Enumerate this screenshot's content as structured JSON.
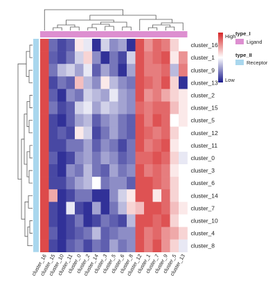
{
  "chart_data": {
    "type": "heatmap",
    "title": "",
    "xlabel": "",
    "ylabel": "",
    "rows": [
      "cluster_16",
      "cluster_1",
      "cluster_9",
      "cluster_13",
      "cluster_2",
      "cluster_15",
      "cluster_5",
      "cluster_12",
      "cluster_11",
      "cluster_0",
      "cluster_3",
      "cluster_6",
      "cluster_14",
      "cluster_7",
      "cluster_10",
      "cluster_4",
      "cluster_8"
    ],
    "columns": [
      "cluster_16",
      "cluster_15",
      "cluster_10",
      "cluster_11",
      "cluster_0",
      "cluster_2",
      "cluster_14",
      "cluster_3",
      "cluster_5",
      "cluster_6",
      "cluster_8",
      "cluster_12",
      "cluster_1",
      "cluster_7",
      "cluster_9",
      "cluster_5",
      "cluster_13"
    ],
    "scale": {
      "high_label": "High",
      "low_label": "Low",
      "colors": [
        "#1a1a8c",
        "#ffffff",
        "#d62728"
      ]
    },
    "values": [
      [
        0.92,
        0.18,
        0.1,
        0.15,
        0.55,
        0.45,
        0.05,
        0.4,
        0.25,
        0.3,
        0.05,
        0.9,
        0.75,
        0.85,
        0.8,
        0.6,
        0.5
      ],
      [
        0.92,
        0.15,
        0.1,
        0.2,
        0.4,
        0.6,
        0.25,
        0.05,
        0.2,
        0.1,
        0.4,
        0.9,
        0.8,
        0.85,
        0.9,
        0.55,
        0.75
      ],
      [
        0.92,
        0.2,
        0.35,
        0.4,
        0.3,
        0.45,
        0.15,
        0.3,
        0.2,
        0.05,
        0.3,
        0.9,
        0.8,
        0.8,
        0.85,
        0.35,
        0.8
      ],
      [
        0.92,
        0.1,
        0.2,
        0.15,
        0.65,
        0.35,
        0.25,
        0.55,
        0.35,
        0.25,
        0.2,
        0.9,
        0.85,
        0.8,
        0.9,
        0.6,
        0.05
      ],
      [
        0.92,
        0.15,
        0.05,
        0.25,
        0.2,
        0.4,
        0.35,
        0.3,
        0.45,
        0.3,
        0.25,
        0.9,
        0.75,
        0.8,
        0.7,
        0.6,
        0.55
      ],
      [
        0.92,
        0.2,
        0.1,
        0.15,
        0.4,
        0.45,
        0.3,
        0.4,
        0.35,
        0.3,
        0.25,
        0.85,
        0.8,
        0.85,
        0.85,
        0.65,
        0.55
      ],
      [
        0.92,
        0.1,
        0.05,
        0.15,
        0.3,
        0.35,
        0.15,
        0.25,
        0.3,
        0.2,
        0.15,
        0.9,
        0.8,
        0.9,
        0.85,
        0.5,
        0.55
      ],
      [
        0.92,
        0.1,
        0.15,
        0.1,
        0.55,
        0.4,
        0.1,
        0.2,
        0.3,
        0.2,
        0.15,
        0.9,
        0.85,
        0.8,
        0.85,
        0.6,
        0.5
      ],
      [
        0.92,
        0.1,
        0.1,
        0.2,
        0.2,
        0.3,
        0.15,
        0.25,
        0.2,
        0.1,
        0.2,
        0.9,
        0.8,
        0.85,
        0.9,
        0.55,
        0.5
      ],
      [
        0.92,
        0.15,
        0.05,
        0.1,
        0.25,
        0.3,
        0.2,
        0.3,
        0.25,
        0.15,
        0.2,
        0.85,
        0.85,
        0.9,
        0.85,
        0.6,
        0.45
      ],
      [
        0.92,
        0.1,
        0.05,
        0.25,
        0.2,
        0.35,
        0.2,
        0.15,
        0.3,
        0.2,
        0.25,
        0.9,
        0.8,
        0.85,
        0.8,
        0.55,
        0.5
      ],
      [
        0.92,
        0.1,
        0.1,
        0.2,
        0.3,
        0.35,
        0.5,
        0.2,
        0.25,
        0.25,
        0.15,
        0.9,
        0.9,
        0.85,
        0.8,
        0.6,
        0.5
      ],
      [
        0.92,
        0.7,
        0.05,
        0.1,
        0.2,
        0.2,
        0.05,
        0.05,
        0.25,
        0.4,
        0.55,
        0.9,
        0.9,
        0.55,
        0.85,
        0.6,
        0.5
      ],
      [
        0.92,
        0.1,
        0.05,
        0.45,
        0.1,
        0.05,
        0.3,
        0.05,
        0.2,
        0.35,
        0.6,
        0.65,
        0.9,
        0.9,
        0.85,
        0.65,
        0.55
      ],
      [
        0.92,
        0.1,
        0.05,
        0.1,
        0.2,
        0.05,
        0.1,
        0.2,
        0.15,
        0.1,
        0.35,
        0.9,
        0.9,
        0.85,
        0.9,
        0.6,
        0.5
      ],
      [
        0.92,
        0.15,
        0.05,
        0.1,
        0.15,
        0.2,
        0.35,
        0.15,
        0.2,
        0.25,
        0.25,
        0.9,
        0.8,
        0.85,
        0.75,
        0.7,
        0.6
      ],
      [
        0.92,
        0.1,
        0.05,
        0.15,
        0.2,
        0.1,
        0.2,
        0.15,
        0.3,
        0.2,
        0.25,
        0.9,
        0.8,
        0.9,
        0.75,
        0.6,
        0.45
      ]
    ],
    "legend": [
      {
        "title": "type_I",
        "label": "Ligand",
        "color": "#dd8fd0"
      },
      {
        "title": "type_II",
        "label": "Receptor",
        "color": "#a9d7ee"
      }
    ]
  }
}
